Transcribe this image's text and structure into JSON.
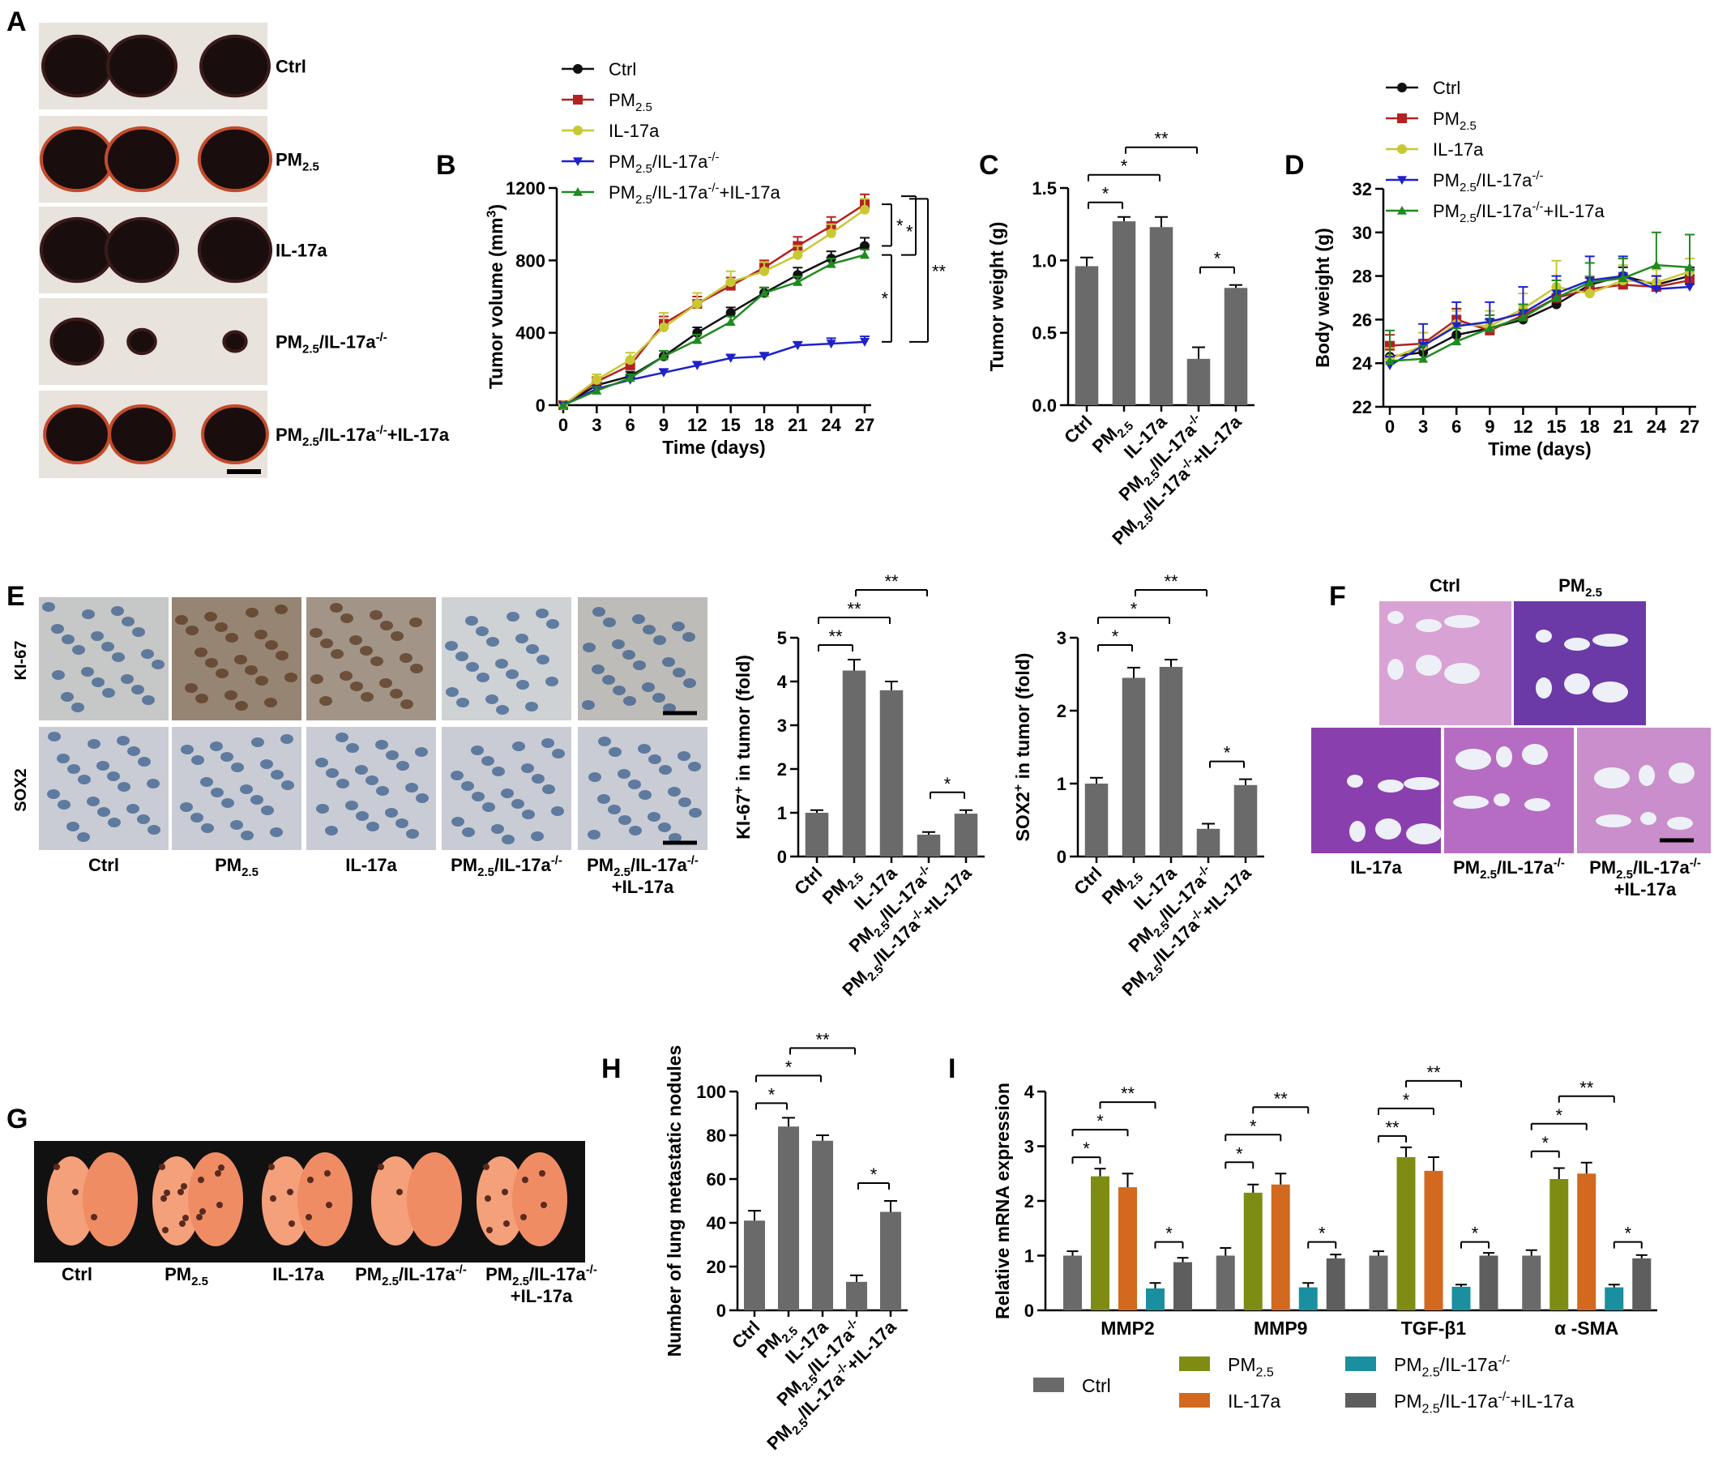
{
  "panel_letters": [
    "A",
    "B",
    "C",
    "D",
    "E",
    "F",
    "G",
    "H",
    "I"
  ],
  "colors": {
    "ctrl": "#111111",
    "pm": "#b22222",
    "il": "#c8c832",
    "ko": "#1f22c8",
    "rescue": "#1f8a1f",
    "bar_gray": "#6a6a6a",
    "bar_olive": "#7f8c14",
    "bar_orange": "#d2691e",
    "bar_teal": "#1a8fa0",
    "bar_dark": "#5e5e5e"
  },
  "panelA": {
    "row_labels": [
      "Ctrl",
      "PM2.5",
      "IL-17a",
      "PM2.5/IL-17a-/-",
      "PM2.5/IL-17a-/-+IL-17a"
    ],
    "tumor_sizes": [
      1.0,
      1.05,
      1.05,
      0.55,
      0.95
    ]
  },
  "panelE": {
    "row_labels": [
      "KI-67",
      "SOX2"
    ],
    "col_labels": [
      "Ctrl",
      "PM2.5",
      "IL-17a",
      "PM2.5/IL-17a-/-",
      "PM2.5/IL-17a-/-",
      "+IL-17a"
    ],
    "stain": [
      0.15,
      0.75,
      0.6,
      0.05,
      0.25
    ]
  },
  "panelF": {
    "top_labels": [
      "Ctrl",
      "PM2.5"
    ],
    "bottom_labels": [
      "IL-17a",
      "PM2.5/IL-17a-/-",
      "PM2.5/IL-17a-/-",
      "+IL-17a"
    ]
  },
  "panelG": {
    "labels": [
      "Ctrl",
      "PM2.5",
      "IL-17a",
      "PM2.5/IL-17a-/-",
      "PM2.5/IL-17a-/-",
      "+IL-17a"
    ],
    "nodules": [
      3,
      14,
      8,
      2,
      9
    ]
  },
  "chart_data": [
    {
      "panel": "B",
      "type": "line",
      "xlabel": "Time (days)",
      "ylabel": "Tumor volume (mm3)",
      "x": [
        0,
        3,
        6,
        9,
        12,
        15,
        18,
        21,
        24,
        27
      ],
      "xlim": [
        0,
        27
      ],
      "ylim": [
        0,
        1200
      ],
      "yticks": [
        0,
        400,
        800,
        1200
      ],
      "series": [
        {
          "name": "Ctrl",
          "values": [
            0,
            110,
            160,
            270,
            400,
            510,
            620,
            720,
            810,
            880
          ]
        },
        {
          "name": "PM2.5",
          "values": [
            0,
            130,
            220,
            450,
            560,
            660,
            760,
            880,
            990,
            1110
          ]
        },
        {
          "name": "IL-17a",
          "values": [
            0,
            140,
            250,
            430,
            560,
            680,
            740,
            830,
            950,
            1080
          ]
        },
        {
          "name": "PM2.5/IL-17a-/-",
          "values": [
            0,
            90,
            140,
            180,
            220,
            260,
            270,
            330,
            340,
            350
          ]
        },
        {
          "name": "PM2.5/IL-17a-/-+IL-17a",
          "values": [
            0,
            80,
            150,
            270,
            360,
            460,
            620,
            680,
            780,
            830
          ]
        }
      ],
      "errors": [
        [
          0,
          20,
          25,
          30,
          30,
          30,
          30,
          40,
          40,
          45
        ],
        [
          0,
          25,
          30,
          40,
          40,
          45,
          40,
          50,
          50,
          55
        ],
        [
          0,
          30,
          40,
          80,
          60,
          60,
          50,
          50,
          50,
          60
        ],
        [
          0,
          15,
          20,
          20,
          20,
          20,
          20,
          20,
          30,
          30
        ],
        [
          0,
          20,
          20,
          30,
          30,
          30,
          30,
          30,
          30,
          30
        ]
      ],
      "significance": [
        "*",
        "*",
        "*",
        "**"
      ]
    },
    {
      "panel": "C",
      "type": "bar",
      "ylabel": "Tumor weight (g)",
      "categories": [
        "Ctrl",
        "PM2.5",
        "IL-17a",
        "PM2.5/IL-17a-/-",
        "PM2.5/IL-17a-/-+IL-17a"
      ],
      "values": [
        0.96,
        1.27,
        1.23,
        0.32,
        0.81
      ],
      "errors": [
        0.06,
        0.03,
        0.07,
        0.08,
        0.02
      ],
      "ylim": [
        0,
        1.5
      ],
      "yticks": [
        "0.0",
        "0.5",
        "1.0",
        "1.5"
      ],
      "significance": [
        "*",
        "*",
        "**",
        "*"
      ]
    },
    {
      "panel": "D",
      "type": "line",
      "xlabel": "Time (days)",
      "ylabel": "Body weight (g)",
      "x": [
        0,
        3,
        6,
        9,
        12,
        15,
        18,
        21,
        24,
        27
      ],
      "xlim": [
        0,
        27
      ],
      "ylim": [
        22,
        32
      ],
      "yticks": [
        22,
        24,
        26,
        28,
        30,
        32
      ],
      "series": [
        {
          "name": "Ctrl",
          "values": [
            24.3,
            24.5,
            25.3,
            25.6,
            26.0,
            26.7,
            27.6,
            28.0,
            27.6,
            28.0
          ]
        },
        {
          "name": "PM2.5",
          "values": [
            24.8,
            24.9,
            26.0,
            25.5,
            26.2,
            27.0,
            27.4,
            27.6,
            27.5,
            27.8
          ]
        },
        {
          "name": "IL-17a",
          "values": [
            24.2,
            24.8,
            25.8,
            25.7,
            26.5,
            27.5,
            27.2,
            27.8,
            27.7,
            28.2
          ]
        },
        {
          "name": "PM2.5/IL-17a-/-",
          "values": [
            23.9,
            24.8,
            25.7,
            25.9,
            26.3,
            27.2,
            27.8,
            28.0,
            27.4,
            27.5
          ]
        },
        {
          "name": "PM2.5/IL-17a-/-+IL-17a",
          "values": [
            24.1,
            24.2,
            25.0,
            25.6,
            26.1,
            27.0,
            27.7,
            27.9,
            28.5,
            28.4
          ]
        }
      ],
      "errors": [
        [
          0.4,
          0.5,
          0.5,
          0.4,
          0.4,
          0.4,
          0.4,
          0.4,
          0.4,
          0.4
        ],
        [
          0.5,
          0.5,
          0.5,
          0.5,
          0.5,
          0.5,
          0.5,
          0.5,
          0.5,
          0.5
        ],
        [
          0.5,
          0.6,
          0.6,
          0.7,
          0.7,
          1.2,
          0.8,
          0.7,
          0.6,
          0.6
        ],
        [
          0.4,
          1.0,
          1.1,
          0.9,
          1.2,
          0.8,
          1.1,
          0.9,
          0.6,
          0.8
        ],
        [
          1.4,
          0.6,
          0.6,
          0.6,
          0.6,
          0.8,
          0.9,
          0.9,
          1.5,
          1.5
        ]
      ]
    },
    {
      "panel": "E1",
      "type": "bar",
      "ylabel": "KI-67+ in tumor (fold)",
      "categories": [
        "Ctrl",
        "PM2.5",
        "IL-17a",
        "PM2.5/IL-17a-/-",
        "PM2.5/IL-17a-/-+IL-17a"
      ],
      "values": [
        1.0,
        4.25,
        3.8,
        0.5,
        0.98
      ],
      "errors": [
        0.06,
        0.25,
        0.2,
        0.06,
        0.08
      ],
      "ylim": [
        0,
        5
      ],
      "yticks": [
        0,
        1,
        2,
        3,
        4,
        5
      ],
      "significance": [
        "**",
        "**",
        "**",
        "*"
      ]
    },
    {
      "panel": "E2",
      "type": "bar",
      "ylabel": "SOX2+ in tumor (fold)",
      "categories": [
        "Ctrl",
        "PM2.5",
        "IL-17a",
        "PM2.5/IL-17a-/-",
        "PM2.5/IL-17a-/-+IL-17a"
      ],
      "values": [
        1.0,
        2.45,
        2.6,
        0.38,
        0.98
      ],
      "errors": [
        0.08,
        0.14,
        0.1,
        0.07,
        0.08
      ],
      "ylim": [
        0,
        3
      ],
      "yticks": [
        0,
        1,
        2,
        3
      ],
      "significance": [
        "*",
        "*",
        "**",
        "*"
      ]
    },
    {
      "panel": "H",
      "type": "bar",
      "ylabel": "Number of lung metastatic nodules",
      "categories": [
        "Ctrl",
        "PM2.5",
        "IL-17a",
        "PM2.5/IL-17a-/-",
        "PM2.5/IL-17a-/-+IL-17a"
      ],
      "values": [
        41,
        84,
        77.5,
        13,
        45
      ],
      "errors": [
        4.5,
        4,
        2.5,
        3,
        5
      ],
      "ylim": [
        0,
        100
      ],
      "yticks": [
        0,
        20,
        40,
        60,
        80,
        100
      ],
      "significance": [
        "*",
        "*",
        "**",
        "*"
      ]
    },
    {
      "panel": "I",
      "type": "bar",
      "ylabel": "Relative mRNA expression",
      "categories": [
        "MMP2",
        "MMP9",
        "TGF-β1",
        "α -SMA"
      ],
      "series": [
        {
          "name": "Ctrl",
          "values": [
            1.0,
            1.0,
            1.0,
            1.0
          ]
        },
        {
          "name": "PM2.5",
          "values": [
            2.45,
            2.15,
            2.8,
            2.4
          ]
        },
        {
          "name": "IL-17a",
          "values": [
            2.25,
            2.3,
            2.55,
            2.5
          ]
        },
        {
          "name": "PM2.5/IL-17a-/-",
          "values": [
            0.4,
            0.42,
            0.43,
            0.42
          ]
        },
        {
          "name": "PM2.5/IL-17a-/-+IL-17a",
          "values": [
            0.88,
            0.95,
            1.0,
            0.95
          ]
        }
      ],
      "errors": [
        [
          0.08,
          0.14,
          0.08,
          0.1
        ],
        [
          0.14,
          0.15,
          0.18,
          0.2
        ],
        [
          0.25,
          0.2,
          0.25,
          0.2
        ],
        [
          0.1,
          0.08,
          0.04,
          0.05
        ],
        [
          0.08,
          0.07,
          0.05,
          0.06
        ]
      ],
      "ylim": [
        0,
        4
      ],
      "yticks": [
        0,
        1,
        2,
        3,
        4
      ],
      "significance": [
        [
          "*",
          "*",
          "**",
          "*"
        ],
        [
          "*",
          "*",
          "**",
          "*"
        ],
        [
          "**",
          "*",
          "**",
          "*"
        ],
        [
          "*",
          "*",
          "**",
          "*"
        ]
      ]
    }
  ]
}
